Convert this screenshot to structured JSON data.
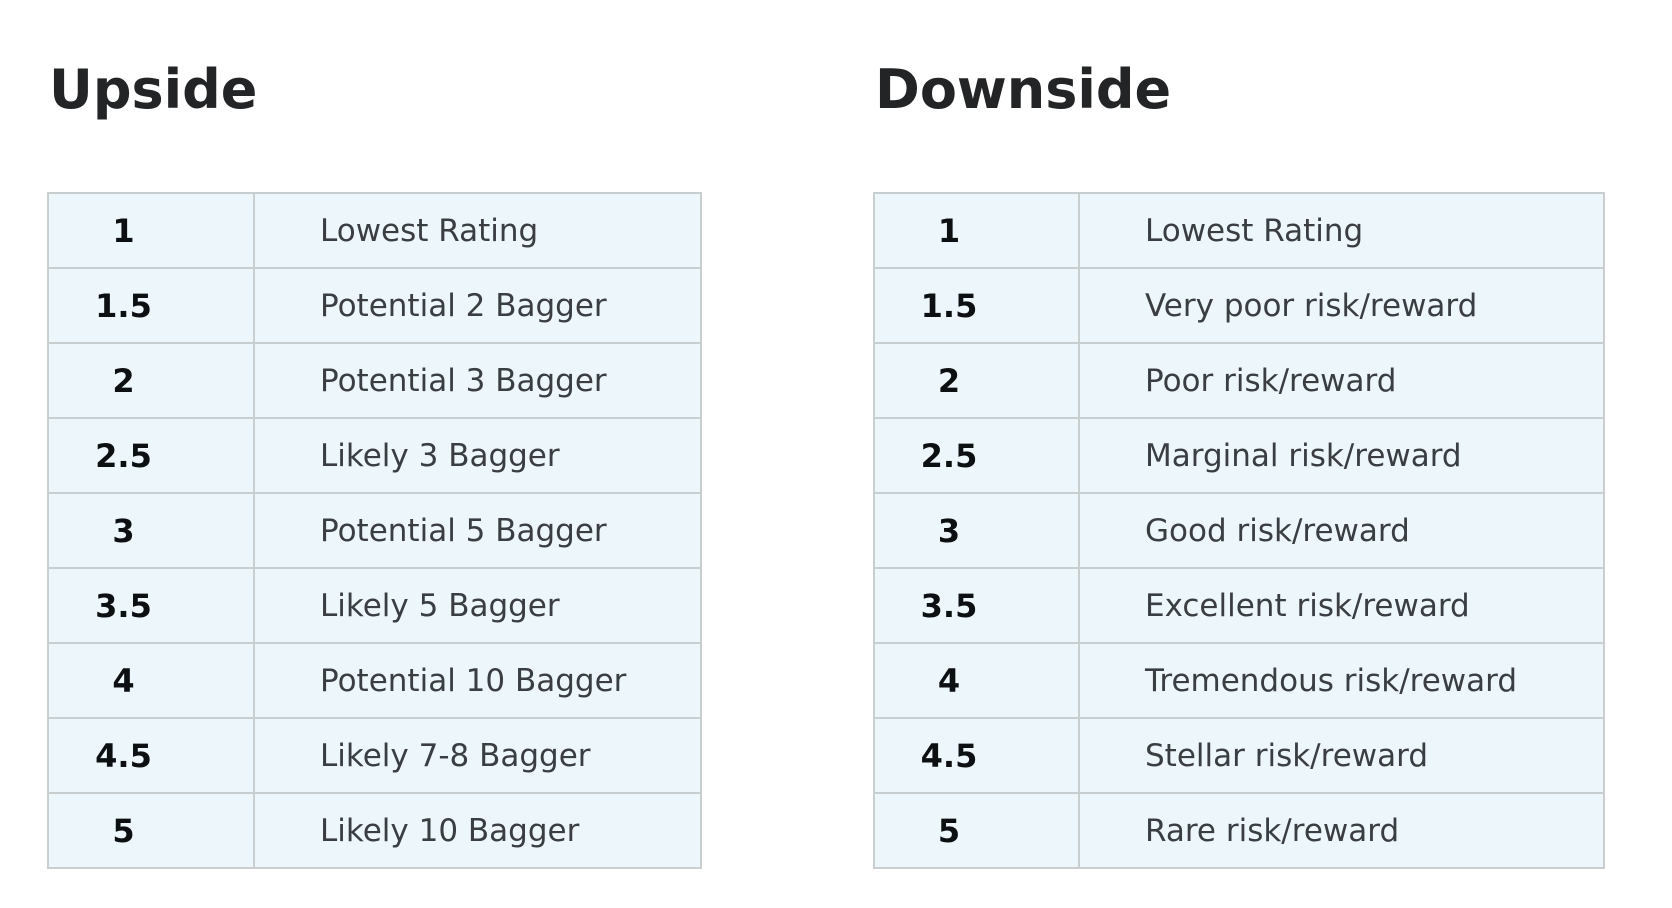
{
  "page": {
    "background_color": "#ffffff"
  },
  "colors": {
    "cell_background": "#edf6fa",
    "cell_border": "#c9ced1",
    "table_outer_border": "#b9bfc2",
    "heading_text": "#222426",
    "rating_text": "#0d1013",
    "label_text": "#3a3e42"
  },
  "tables": [
    {
      "id": "upside",
      "title": "Upside",
      "rows": [
        {
          "rating": "1",
          "label": "Lowest Rating"
        },
        {
          "rating": "1.5",
          "label": "Potential 2 Bagger"
        },
        {
          "rating": "2",
          "label": "Potential 3 Bagger"
        },
        {
          "rating": "2.5",
          "label": "Likely 3 Bagger"
        },
        {
          "rating": "3",
          "label": "Potential 5 Bagger"
        },
        {
          "rating": "3.5",
          "label": "Likely 5 Bagger"
        },
        {
          "rating": "4",
          "label": "Potential 10 Bagger"
        },
        {
          "rating": "4.5",
          "label": "Likely 7-8 Bagger"
        },
        {
          "rating": "5",
          "label": "Likely 10 Bagger"
        }
      ]
    },
    {
      "id": "downside",
      "title": "Downside",
      "rows": [
        {
          "rating": "1",
          "label": "Lowest Rating"
        },
        {
          "rating": "1.5",
          "label": "Very poor risk/reward"
        },
        {
          "rating": "2",
          "label": "Poor risk/reward"
        },
        {
          "rating": "2.5",
          "label": "Marginal risk/reward"
        },
        {
          "rating": "3",
          "label": "Good risk/reward"
        },
        {
          "rating": "3.5",
          "label": "Excellent risk/reward"
        },
        {
          "rating": "4",
          "label": "Tremendous risk/reward"
        },
        {
          "rating": "4.5",
          "label": "Stellar risk/reward"
        },
        {
          "rating": "5",
          "label": "Rare risk/reward"
        }
      ]
    }
  ]
}
